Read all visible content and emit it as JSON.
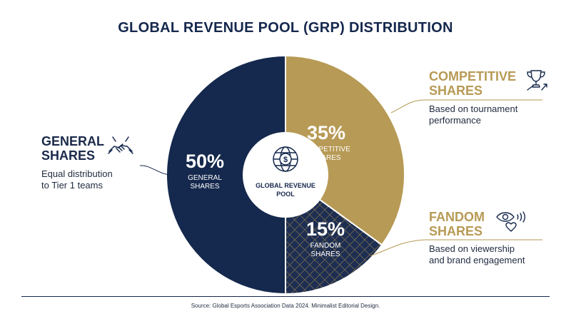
{
  "title": "GLOBAL REVENUE POOL (GRP) DISTRIBUTION",
  "center_label": [
    "GLOBAL REVENUE",
    "POOL"
  ],
  "chart_data": {
    "type": "pie",
    "title": "GLOBAL REVENUE POOL (GRP) DISTRIBUTION",
    "slices": [
      {
        "label": "COMPETITIVE SHARES",
        "value": 35,
        "value_label": "35%",
        "color": "#b79a55"
      },
      {
        "label": "FANDOM SHARES",
        "value": 15,
        "value_label": "15%",
        "color": "#1d2e52"
      },
      {
        "label": "GENERAL SHARES",
        "value": 50,
        "value_label": "50%",
        "color": "#15284d"
      }
    ],
    "donut": true
  },
  "callouts": {
    "general": {
      "heading": [
        "GENERAL",
        "SHARES"
      ],
      "text": [
        "Equal distribution",
        "to Tier 1 teams"
      ],
      "color": "#15284d",
      "icon": "handshake-icon"
    },
    "competitive": {
      "heading": [
        "COMPETITIVE",
        "SHARES"
      ],
      "text": [
        "Based on tournament",
        "performance"
      ],
      "color": "#b79a55",
      "icon": "trophy-icon"
    },
    "fandom": {
      "heading": [
        "FANDOM",
        "SHARES"
      ],
      "text": [
        "Based on viewership",
        "and brand engagement"
      ],
      "color": "#b79a55",
      "icon": "eye-heart-icon"
    }
  },
  "source": "Source: Global Esports Association Data 2024. Minimalist Editorial Design."
}
